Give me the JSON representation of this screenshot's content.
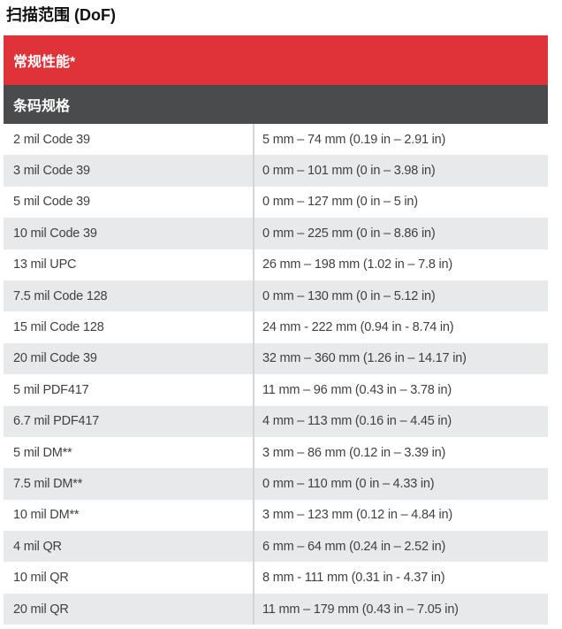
{
  "page_title": "扫描范围 (DoF)",
  "table": {
    "section_header": "常规性能*",
    "column_header": "条码规格",
    "rows": [
      {
        "spec": "2 mil Code 39",
        "range": "5 mm – 74 mm (0.19 in – 2.91 in)"
      },
      {
        "spec": "3 mil Code 39",
        "range": "0 mm – 101 mm (0 in – 3.98 in)"
      },
      {
        "spec": "5 mil Code 39",
        "range": "0 mm – 127 mm (0 in – 5 in)"
      },
      {
        "spec": "10 mil Code 39",
        "range": "0 mm – 225 mm (0 in – 8.86 in)"
      },
      {
        "spec": "13 mil UPC",
        "range": "26 mm – 198 mm (1.02 in – 7.8 in)"
      },
      {
        "spec": "7.5 mil Code 128",
        "range": "0 mm – 130 mm (0 in – 5.12 in)"
      },
      {
        "spec": "15 mil Code 128",
        "range": "24 mm - 222 mm (0.94 in - 8.74 in)"
      },
      {
        "spec": "20 mil Code 39",
        "range": "32 mm – 360 mm (1.26 in – 14.17 in)"
      },
      {
        "spec": "5 mil PDF417",
        "range": "11 mm – 96 mm (0.43 in – 3.78 in)"
      },
      {
        "spec": "6.7 mil PDF417",
        "range": "4 mm – 113 mm (0.16 in – 4.45 in)"
      },
      {
        "spec": "5 mil DM**",
        "range": "3 mm – 86 mm (0.12 in – 3.39 in)"
      },
      {
        "spec": "7.5 mil DM**",
        "range": "0 mm – 110 mm (0 in – 4.33 in)"
      },
      {
        "spec": "10 mil DM**",
        "range": "3 mm – 123 mm (0.12 in – 4.84 in)"
      },
      {
        "spec": "4 mil QR",
        "range": "6 mm – 64 mm (0.24 in – 2.52 in)"
      },
      {
        "spec": "10 mil QR",
        "range": "8 mm - 111 mm (0.31 in - 4.37 in)"
      },
      {
        "spec": "20 mil QR",
        "range": "11 mm – 179 mm (0.43 in – 7.05 in)"
      }
    ]
  },
  "colors": {
    "accent_red": "#de3339",
    "header_dark": "#4a4b4d",
    "row_alt": "#e8e9ea",
    "divider": "#d4d5d6",
    "row_text": "#414042"
  }
}
